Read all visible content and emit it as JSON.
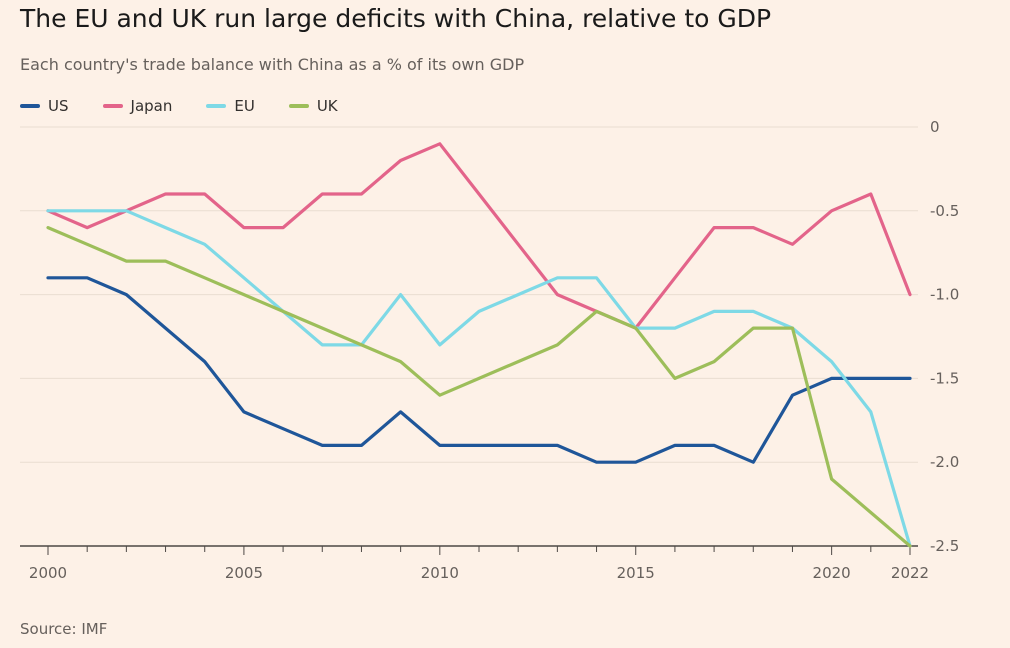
{
  "title": "The EU and UK run large deficits with China, relative to GDP",
  "subtitle": "Each country's trade balance with China as a % of its own GDP",
  "source": "Source: IMF",
  "chart_data": {
    "type": "line",
    "title": "The EU and UK run large deficits with China, relative to GDP",
    "subtitle": "Each country's trade balance with China as a % of its own GDP",
    "xlabel": "",
    "ylabel": "",
    "x": [
      2000,
      2001,
      2002,
      2003,
      2004,
      2005,
      2006,
      2007,
      2008,
      2009,
      2010,
      2011,
      2012,
      2013,
      2014,
      2015,
      2016,
      2017,
      2018,
      2019,
      2020,
      2021,
      2022
    ],
    "xlim": [
      2000,
      2022
    ],
    "ylim": [
      -2.5,
      0
    ],
    "x_ticks": [
      2000,
      2005,
      2010,
      2015,
      2020,
      2022
    ],
    "y_ticks": [
      0,
      -0.5,
      -1.0,
      -1.5,
      -2.0,
      -2.5
    ],
    "y_tick_labels": [
      "0",
      "-0.5",
      "-1.0",
      "-1.5",
      "-2.0",
      "-2.5"
    ],
    "grid": "horizontal",
    "legend_position": "top-left",
    "series": [
      {
        "name": "US",
        "color": "#1f5699",
        "values": [
          -0.9,
          -0.9,
          -1.0,
          -1.2,
          -1.4,
          -1.7,
          -1.8,
          -1.9,
          -1.9,
          -1.7,
          -1.9,
          -1.9,
          -1.9,
          -1.9,
          -2.0,
          -2.0,
          -1.9,
          -1.9,
          -2.0,
          -1.6,
          -1.5,
          -1.5,
          -1.5
        ]
      },
      {
        "name": "Japan",
        "color": "#e3648a",
        "values": [
          -0.5,
          -0.6,
          -0.5,
          -0.4,
          -0.4,
          -0.6,
          -0.6,
          -0.4,
          -0.4,
          -0.2,
          -0.1,
          -0.4,
          -0.7,
          -1.0,
          -1.1,
          -1.2,
          -0.9,
          -0.6,
          -0.6,
          -0.7,
          -0.5,
          -0.4,
          -1.0
        ]
      },
      {
        "name": "EU",
        "color": "#7ed9e6",
        "values": [
          -0.5,
          -0.5,
          -0.5,
          -0.6,
          -0.7,
          -0.9,
          -1.1,
          -1.3,
          -1.3,
          -1.0,
          -1.3,
          -1.1,
          -1.0,
          -0.9,
          -0.9,
          -1.2,
          -1.2,
          -1.1,
          -1.1,
          -1.2,
          -1.4,
          -1.7,
          -2.5
        ]
      },
      {
        "name": "UK",
        "color": "#9dbe5a",
        "values": [
          -0.6,
          -0.7,
          -0.8,
          -0.8,
          -0.9,
          -1.0,
          -1.1,
          -1.2,
          -1.3,
          -1.4,
          -1.6,
          -1.5,
          -1.4,
          -1.3,
          -1.1,
          -1.2,
          -1.5,
          -1.4,
          -1.2,
          -1.2,
          -2.1,
          -2.3,
          -2.5
        ]
      }
    ]
  }
}
